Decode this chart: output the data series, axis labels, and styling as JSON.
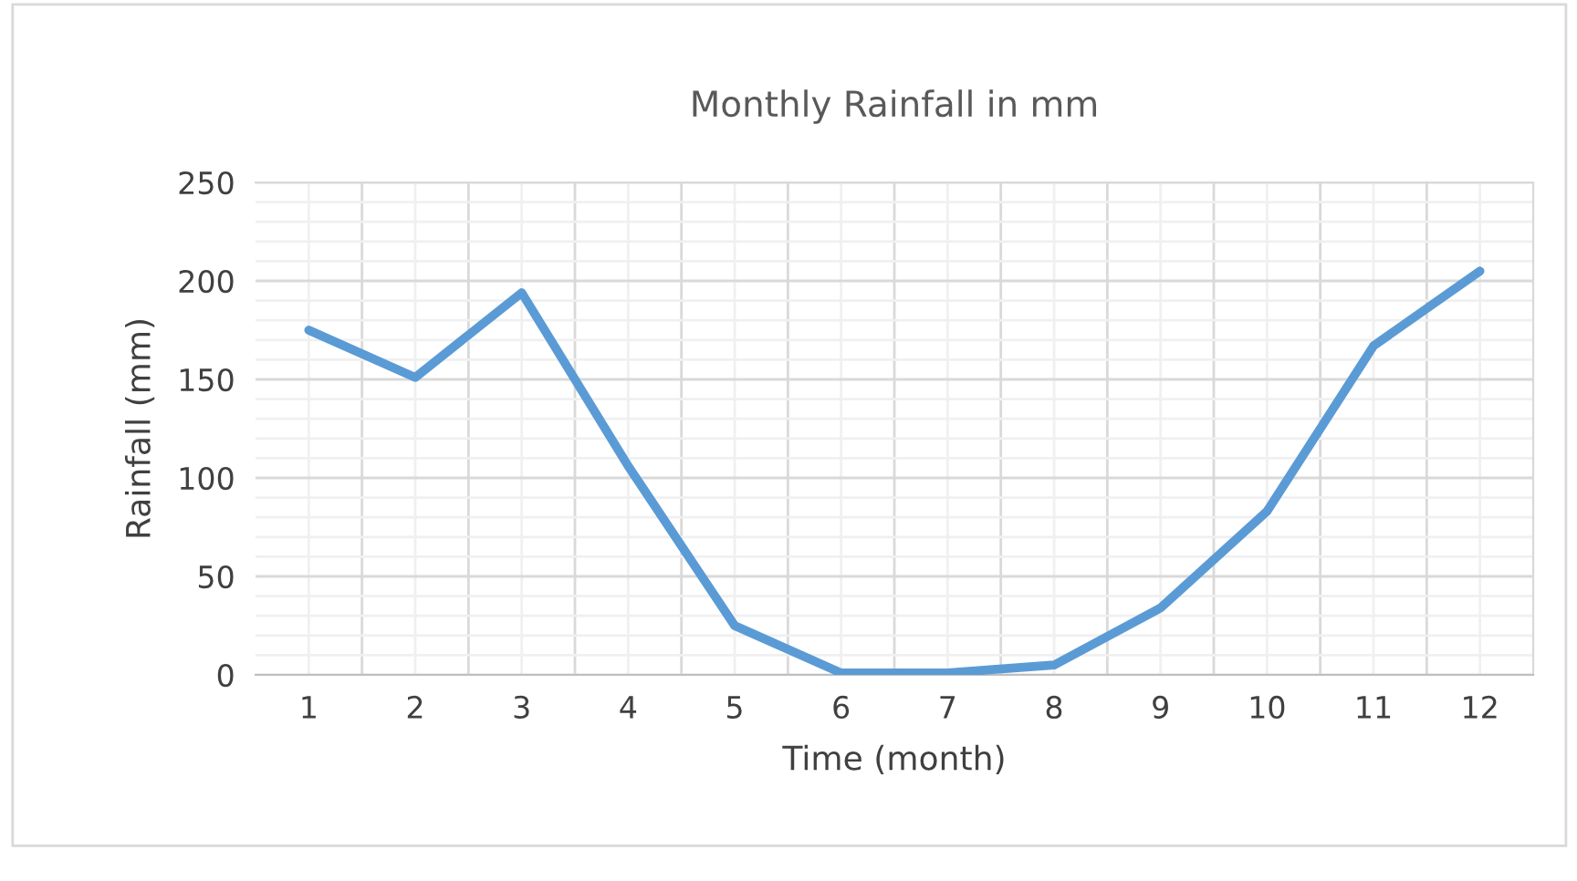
{
  "chart_data": {
    "type": "line",
    "title": "Monthly Rainfall in mm",
    "xlabel": "Time (month)",
    "ylabel": "Rainfall (mm)",
    "categories": [
      "1",
      "2",
      "3",
      "4",
      "5",
      "6",
      "7",
      "8",
      "9",
      "10",
      "11",
      "12"
    ],
    "series": [
      {
        "color": "#5b9bd5",
        "values": [
          175,
          151,
          194,
          106,
          25,
          1,
          1,
          5,
          34,
          83,
          167,
          205
        ]
      }
    ],
    "ylim": [
      0,
      250
    ],
    "yticks": [
      0,
      50,
      100,
      150,
      200,
      250
    ],
    "grid": true,
    "marker": "none",
    "line_style": "solid"
  }
}
